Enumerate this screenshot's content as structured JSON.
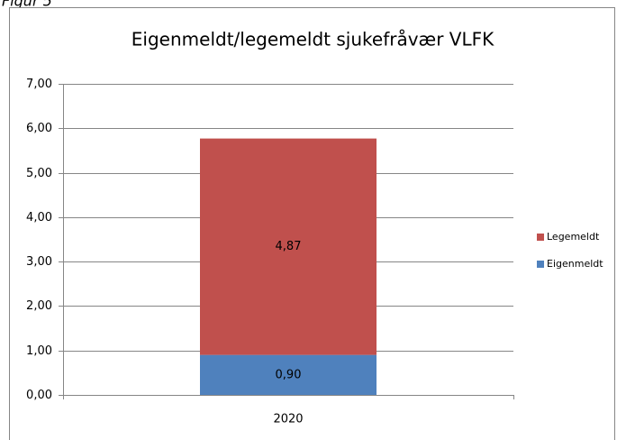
{
  "figure_label": "Figur 5",
  "chart_data": {
    "type": "stacked_bar",
    "title": "Eigenmeldt/legemeldt sjukefråvær VLFK",
    "categories": [
      "2020"
    ],
    "series": [
      {
        "name": "Eigenmeldt",
        "color": "#4f81bd",
        "values": [
          0.9
        ],
        "value_labels": [
          "0,90"
        ]
      },
      {
        "name": "Legemeldt",
        "color": "#c0504d",
        "values": [
          4.87
        ],
        "value_labels": [
          "4,87"
        ]
      }
    ],
    "ylim": [
      0,
      7
    ],
    "yticks": [
      {
        "value": 0,
        "label": "0,00"
      },
      {
        "value": 1,
        "label": "1,00"
      },
      {
        "value": 2,
        "label": "2,00"
      },
      {
        "value": 3,
        "label": "3,00"
      },
      {
        "value": 4,
        "label": "4,00"
      },
      {
        "value": 5,
        "label": "5,00"
      },
      {
        "value": 6,
        "label": "6,00"
      },
      {
        "value": 7,
        "label": "7,00"
      }
    ],
    "grid": true,
    "legend": "right"
  }
}
